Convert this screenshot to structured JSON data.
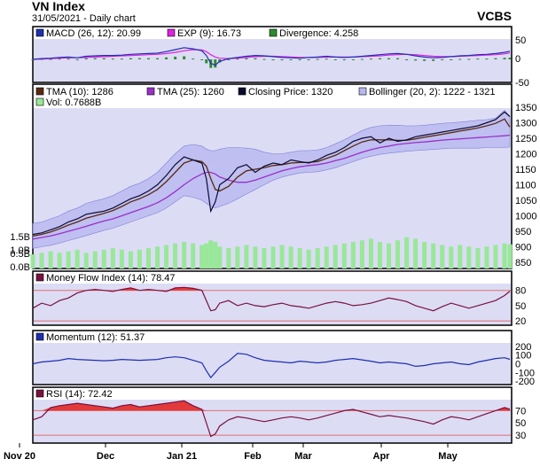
{
  "header": {
    "title": "VN Index",
    "subtitle": "31/05/2021 - Daily chart",
    "brand": "VCBS"
  },
  "x_axis": {
    "labels": [
      "Nov 20",
      "Dec",
      "Jan 21",
      "Feb",
      "Mar",
      "Apr",
      "May"
    ]
  },
  "colors": {
    "panel_bg": "#dcdcf5",
    "border": "#000000",
    "legend_bg": "#ffffff",
    "macd": "#1f2fb0",
    "exp": "#e020e0",
    "divergence": "#2e8b2e",
    "tma10": "#5a2a10",
    "tma25": "#9a30c8",
    "close": "#0b0b30",
    "bollinger": "#b8b8f0",
    "volume": "#98e898",
    "mfi": "#7a1040",
    "momentum": "#1f2fb0",
    "rsi": "#7a1040",
    "overbought_fill": "#e23a3a",
    "ref_line": "#e07070"
  },
  "chart_data": [
    {
      "type": "line",
      "name": "MACD panel",
      "legend": [
        "MACD (26, 12): 20.99",
        "EXP (9): 16.73",
        "Divergence: 4.258"
      ],
      "y_ticks": [
        50,
        0,
        -50
      ],
      "ylim": [
        -55,
        60
      ],
      "x": [
        0,
        10,
        20,
        30,
        40,
        50,
        60,
        70,
        80,
        90,
        100,
        110,
        120,
        130,
        140,
        150,
        160,
        170,
        180,
        190,
        195,
        200,
        205,
        210,
        220,
        230,
        240,
        250,
        260,
        270,
        280,
        290,
        300,
        310,
        320,
        330,
        340,
        350,
        360,
        370,
        380,
        390,
        400,
        410,
        420,
        430,
        440,
        450,
        460,
        470,
        480,
        490,
        500,
        510,
        520,
        530,
        536
      ],
      "series": [
        {
          "name": "MACD (26, 12)",
          "values": [
            0,
            2,
            3,
            5,
            6,
            4,
            8,
            9,
            10,
            10,
            11,
            13,
            14,
            15,
            16,
            20,
            25,
            30,
            27,
            22,
            10,
            -10,
            -15,
            -5,
            2,
            5,
            8,
            10,
            9,
            7,
            5,
            4,
            3,
            5,
            6,
            8,
            6,
            5,
            6,
            8,
            10,
            12,
            14,
            15,
            13,
            9,
            6,
            4,
            5,
            7,
            9,
            10,
            12,
            13,
            15,
            18,
            21
          ]
        },
        {
          "name": "EXP (9)",
          "values": [
            0,
            1,
            2,
            3,
            4,
            4,
            5,
            6,
            7,
            8,
            9,
            10,
            11,
            12,
            13,
            15,
            18,
            22,
            25,
            24,
            20,
            12,
            6,
            3,
            2,
            3,
            5,
            7,
            8,
            8,
            7,
            6,
            5,
            5,
            5,
            6,
            6,
            6,
            6,
            7,
            8,
            9,
            11,
            12,
            13,
            12,
            10,
            8,
            7,
            7,
            8,
            9,
            10,
            11,
            12,
            14,
            16.7
          ]
        },
        {
          "name": "Divergence",
          "values": [
            0,
            1,
            1,
            2,
            2,
            0,
            3,
            3,
            3,
            2,
            2,
            3,
            3,
            3,
            3,
            5,
            7,
            8,
            2,
            -2,
            -10,
            -22,
            -21,
            -8,
            0,
            2,
            3,
            3,
            1,
            -1,
            -2,
            -2,
            -2,
            0,
            1,
            2,
            0,
            -1,
            0,
            1,
            2,
            3,
            3,
            3,
            0,
            -3,
            -4,
            -4,
            -2,
            0,
            1,
            1,
            2,
            2,
            3,
            4,
            4.3
          ]
        }
      ]
    },
    {
      "type": "line",
      "name": "Price panel",
      "legend": [
        "TMA (10): 1286",
        "TMA (25): 1260",
        "Closing Price: 1320",
        "Bollinger (20, 2): 1222 - 1321",
        "Vol: 0.7688B"
      ],
      "y_ticks": [
        1350,
        1300,
        1250,
        1200,
        1150,
        1100,
        1050,
        1000,
        950,
        900,
        850
      ],
      "vol_ticks": [
        "1.5B",
        "1.0B",
        "0.5B",
        "0.0B"
      ],
      "ylim": [
        850,
        1380
      ],
      "vol_max": 1.5,
      "x": [
        0,
        10,
        20,
        30,
        40,
        50,
        60,
        70,
        80,
        90,
        100,
        110,
        120,
        130,
        140,
        150,
        160,
        170,
        180,
        190,
        195,
        200,
        205,
        210,
        220,
        230,
        240,
        250,
        260,
        270,
        280,
        290,
        300,
        310,
        320,
        330,
        340,
        350,
        360,
        370,
        380,
        390,
        400,
        410,
        420,
        430,
        440,
        450,
        460,
        470,
        480,
        490,
        500,
        510,
        520,
        530,
        536
      ],
      "series": [
        {
          "name": "Closing Price",
          "values": [
            940,
            945,
            955,
            965,
            980,
            990,
            1005,
            1010,
            1015,
            1025,
            1040,
            1055,
            1065,
            1080,
            1100,
            1130,
            1165,
            1190,
            1180,
            1170,
            1120,
            1015,
            1045,
            1100,
            1120,
            1155,
            1165,
            1140,
            1160,
            1170,
            1165,
            1180,
            1175,
            1170,
            1180,
            1195,
            1205,
            1220,
            1240,
            1250,
            1255,
            1235,
            1250,
            1240,
            1245,
            1255,
            1260,
            1265,
            1270,
            1275,
            1280,
            1285,
            1290,
            1300,
            1310,
            1335,
            1320
          ]
        },
        {
          "name": "TMA (10)",
          "values": [
            935,
            940,
            948,
            958,
            970,
            980,
            992,
            1000,
            1008,
            1017,
            1030,
            1045,
            1055,
            1068,
            1085,
            1110,
            1140,
            1170,
            1180,
            1175,
            1160,
            1120,
            1085,
            1080,
            1095,
            1125,
            1145,
            1150,
            1155,
            1162,
            1165,
            1170,
            1172,
            1172,
            1175,
            1185,
            1195,
            1210,
            1225,
            1238,
            1245,
            1245,
            1245,
            1243,
            1243,
            1248,
            1253,
            1258,
            1263,
            1268,
            1273,
            1278,
            1283,
            1290,
            1298,
            1312,
            1286
          ]
        },
        {
          "name": "TMA (25)",
          "values": [
            925,
            930,
            935,
            942,
            950,
            958,
            966,
            975,
            983,
            990,
            1000,
            1010,
            1020,
            1030,
            1042,
            1058,
            1078,
            1100,
            1120,
            1135,
            1140,
            1140,
            1135,
            1125,
            1115,
            1108,
            1108,
            1115,
            1125,
            1135,
            1145,
            1152,
            1158,
            1162,
            1165,
            1170,
            1178,
            1185,
            1195,
            1205,
            1213,
            1220,
            1225,
            1230,
            1233,
            1236,
            1238,
            1241,
            1244,
            1246,
            1248,
            1250,
            1252,
            1254,
            1256,
            1258,
            1260
          ]
        },
        {
          "name": "Bollinger upper",
          "values": [
            975,
            980,
            990,
            1000,
            1015,
            1025,
            1040,
            1048,
            1055,
            1065,
            1080,
            1095,
            1105,
            1120,
            1140,
            1170,
            1200,
            1225,
            1230,
            1225,
            1215,
            1210,
            1210,
            1215,
            1220,
            1220,
            1218,
            1215,
            1205,
            1200,
            1200,
            1205,
            1210,
            1210,
            1212,
            1220,
            1232,
            1245,
            1260,
            1275,
            1285,
            1290,
            1292,
            1292,
            1290,
            1290,
            1292,
            1295,
            1298,
            1300,
            1302,
            1305,
            1308,
            1310,
            1315,
            1340,
            1321
          ]
        },
        {
          "name": "Bollinger lower",
          "values": [
            895,
            900,
            905,
            912,
            920,
            928,
            936,
            945,
            953,
            960,
            970,
            980,
            990,
            1000,
            1010,
            1025,
            1045,
            1065,
            1060,
            1050,
            1040,
            1030,
            1025,
            1030,
            1040,
            1055,
            1070,
            1085,
            1100,
            1115,
            1125,
            1132,
            1138,
            1140,
            1142,
            1148,
            1155,
            1165,
            1175,
            1185,
            1192,
            1198,
            1202,
            1205,
            1208,
            1210,
            1212,
            1214,
            1216,
            1218,
            1218,
            1218,
            1218,
            1220,
            1220,
            1220,
            1222
          ]
        }
      ],
      "volume": [
        0.45,
        0.5,
        0.55,
        0.5,
        0.55,
        0.6,
        0.5,
        0.55,
        0.6,
        0.65,
        0.6,
        0.55,
        0.6,
        0.65,
        0.7,
        0.75,
        0.8,
        0.85,
        0.8,
        0.75,
        0.8,
        0.9,
        0.85,
        0.7,
        0.65,
        0.7,
        0.75,
        0.7,
        0.65,
        0.7,
        0.75,
        0.7,
        0.65,
        0.6,
        0.65,
        0.7,
        0.75,
        0.8,
        0.85,
        0.9,
        0.95,
        0.85,
        0.8,
        0.9,
        1.0,
        0.95,
        0.85,
        0.8,
        0.75,
        0.7,
        0.75,
        0.7,
        0.65,
        0.7,
        0.75,
        0.8,
        0.77
      ]
    },
    {
      "type": "line",
      "name": "MFI panel",
      "legend": [
        "Money Flow Index (14): 78.47"
      ],
      "y_ticks": [
        80,
        50,
        20
      ],
      "ylim": [
        10,
        95
      ],
      "ref_lines": [
        80,
        20
      ],
      "x": [
        0,
        10,
        20,
        30,
        40,
        50,
        60,
        70,
        80,
        90,
        100,
        110,
        120,
        130,
        140,
        150,
        160,
        170,
        180,
        190,
        195,
        200,
        205,
        210,
        220,
        230,
        240,
        250,
        260,
        270,
        280,
        290,
        300,
        310,
        320,
        330,
        340,
        350,
        360,
        370,
        380,
        390,
        400,
        410,
        420,
        430,
        440,
        450,
        460,
        470,
        480,
        490,
        500,
        510,
        520,
        530,
        536
      ],
      "series": [
        {
          "name": "Money Flow Index (14)",
          "values": [
            45,
            55,
            50,
            60,
            65,
            75,
            80,
            82,
            80,
            78,
            82,
            85,
            80,
            82,
            80,
            78,
            85,
            86,
            84,
            80,
            60,
            40,
            42,
            55,
            60,
            50,
            55,
            50,
            48,
            52,
            55,
            50,
            48,
            45,
            50,
            55,
            58,
            55,
            50,
            52,
            55,
            60,
            65,
            62,
            58,
            50,
            45,
            40,
            48,
            55,
            50,
            45,
            50,
            55,
            60,
            70,
            78.5
          ]
        }
      ]
    },
    {
      "type": "line",
      "name": "Momentum panel",
      "legend": [
        "Momentum (12): 51.37"
      ],
      "y_ticks": [
        200,
        100,
        0,
        -100,
        -200
      ],
      "ylim": [
        -220,
        220
      ],
      "x": [
        0,
        10,
        20,
        30,
        40,
        50,
        60,
        70,
        80,
        90,
        100,
        110,
        120,
        130,
        140,
        150,
        160,
        170,
        180,
        190,
        195,
        200,
        205,
        210,
        220,
        230,
        240,
        250,
        260,
        270,
        280,
        290,
        300,
        310,
        320,
        330,
        340,
        350,
        360,
        370,
        380,
        390,
        400,
        410,
        420,
        430,
        440,
        450,
        460,
        470,
        480,
        490,
        500,
        510,
        520,
        530,
        536
      ],
      "series": [
        {
          "name": "Momentum (12)",
          "values": [
            0,
            20,
            30,
            40,
            60,
            50,
            45,
            40,
            35,
            40,
            50,
            45,
            40,
            45,
            50,
            70,
            80,
            70,
            40,
            10,
            -80,
            -160,
            -100,
            -40,
            30,
            120,
            110,
            70,
            40,
            30,
            20,
            10,
            30,
            20,
            10,
            20,
            40,
            50,
            60,
            45,
            30,
            10,
            20,
            10,
            0,
            -30,
            -20,
            0,
            10,
            20,
            0,
            -10,
            20,
            40,
            60,
            70,
            51
          ]
        }
      ]
    },
    {
      "type": "line",
      "name": "RSI panel",
      "legend": [
        "RSI (14): 72.42"
      ],
      "y_ticks": [
        70,
        50,
        30
      ],
      "ylim": [
        15,
        95
      ],
      "ref_lines": [
        70,
        30
      ],
      "x": [
        0,
        10,
        20,
        30,
        40,
        50,
        60,
        70,
        80,
        90,
        100,
        110,
        120,
        130,
        140,
        150,
        160,
        170,
        180,
        190,
        195,
        200,
        205,
        210,
        220,
        230,
        240,
        250,
        260,
        270,
        280,
        290,
        300,
        310,
        320,
        330,
        340,
        350,
        360,
        370,
        380,
        390,
        400,
        410,
        420,
        430,
        440,
        450,
        460,
        470,
        480,
        490,
        500,
        510,
        520,
        530,
        536
      ],
      "series": [
        {
          "name": "RSI (14)",
          "values": [
            55,
            60,
            75,
            78,
            80,
            82,
            80,
            78,
            76,
            74,
            78,
            80,
            76,
            78,
            80,
            82,
            84,
            86,
            78,
            72,
            50,
            28,
            32,
            45,
            55,
            60,
            58,
            55,
            52,
            55,
            58,
            60,
            58,
            55,
            58,
            62,
            66,
            70,
            72,
            68,
            64,
            60,
            62,
            60,
            58,
            55,
            52,
            48,
            55,
            60,
            58,
            55,
            60,
            65,
            70,
            75,
            72.4
          ]
        }
      ]
    }
  ]
}
